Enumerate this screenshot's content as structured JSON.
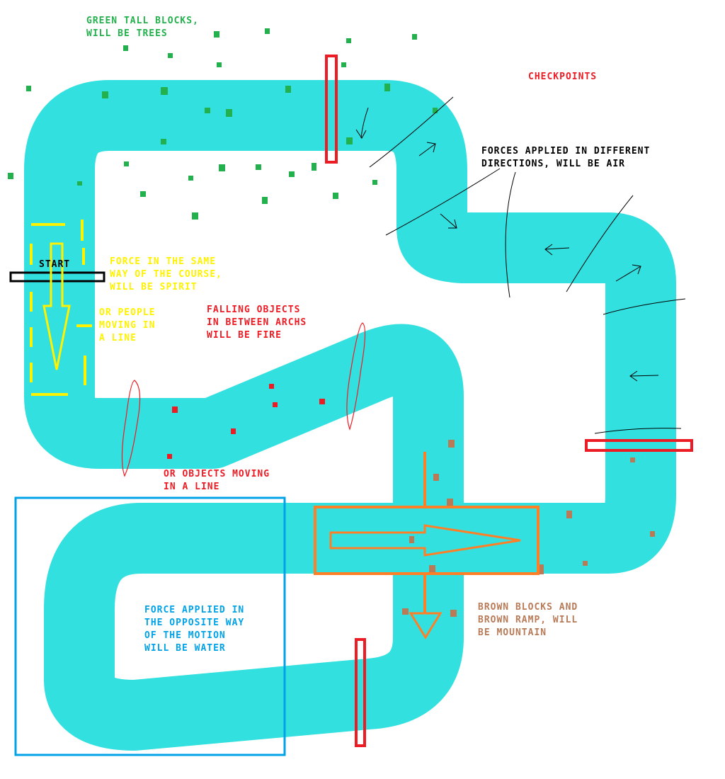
{
  "colors": {
    "track": "#33e0e0",
    "trees": "#22b14c",
    "fire": "#ed1c24",
    "checkpoint": "#ed1c24",
    "spirit": "#fff200",
    "water": "#00a2e8",
    "mountain_box": "#ff7f27",
    "mountain_blocks": "#b97a57",
    "air": "#000000"
  },
  "labels": {
    "start": "START",
    "checkpoints": "CHECKPOINTS",
    "trees": [
      "GREEN TALL BLOCKS,",
      "WILL BE TREES"
    ],
    "air": [
      "FORCES APPLIED IN DIFFERENT",
      "DIRECTIONS, WILL BE AIR"
    ],
    "spirit": [
      "FORCE IN THE SAME",
      "WAY OF THE COURSE,",
      "WILL BE SPIRIT"
    ],
    "spirit_alt": [
      "OR PEOPLE",
      "MOVING IN",
      "A LINE"
    ],
    "fire": [
      "FALLING OBJECTS",
      "IN BETWEEN ARCHS",
      "WILL BE FIRE"
    ],
    "fire_alt": [
      "OR OBJECTS MOVING",
      "IN A LINE"
    ],
    "water": [
      "FORCE APPLIED IN",
      "THE OPPOSITE WAY",
      "OF THE MOTION",
      "WILL BE WATER"
    ],
    "mountain": [
      "BROWN BLOCKS AND",
      "BROWN RAMP, WILL",
      "BE MOUNTAIN"
    ]
  }
}
